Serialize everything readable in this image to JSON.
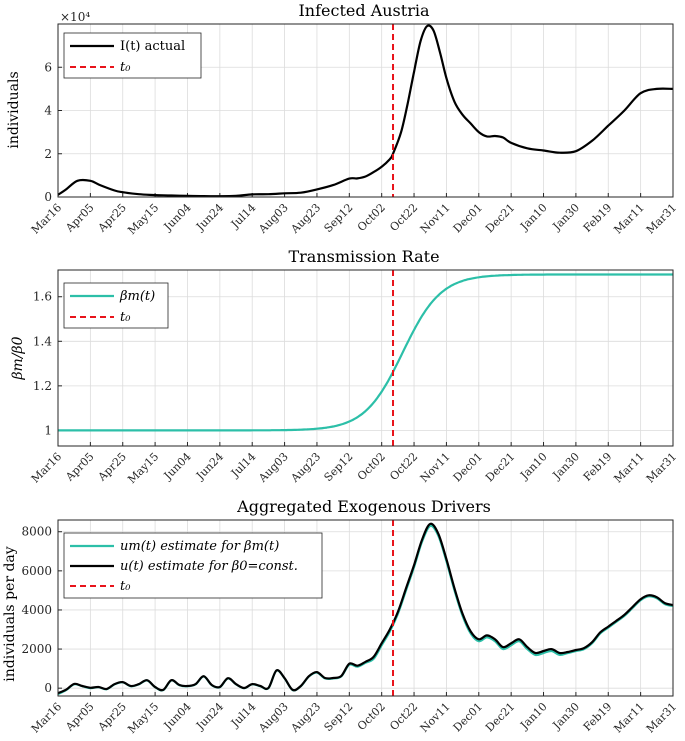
{
  "chart_data": [
    {
      "type": "line",
      "title": "Infected Austria",
      "ylabel": "individuals",
      "y_exponent_label": "×10⁴",
      "ylim": [
        0,
        80000
      ],
      "yticks": [
        0,
        20000,
        40000,
        60000
      ],
      "ytick_labels": [
        "0",
        "2",
        "4",
        "6"
      ],
      "grid": true,
      "legend_position": "top-left",
      "t0_day": 207,
      "t0_label": "t₀",
      "series": [
        {
          "name": "I(t) actual",
          "color": "#000000",
          "style": "solid",
          "x": [
            0,
            5,
            12,
            20,
            26,
            35,
            40,
            50,
            60,
            70,
            80,
            90,
            100,
            110,
            120,
            130,
            140,
            150,
            160,
            170,
            180,
            185,
            190,
            195,
            200,
            205,
            207,
            212,
            216,
            220,
            224,
            228,
            232,
            236,
            240,
            245,
            250,
            255,
            260,
            265,
            270,
            275,
            280,
            290,
            300,
            310,
            320,
            330,
            340,
            350,
            360,
            370,
            380
          ],
          "y": [
            1000,
            3500,
            7500,
            7500,
            5500,
            3000,
            2200,
            1300,
            900,
            700,
            500,
            400,
            350,
            500,
            1200,
            1300,
            1700,
            2000,
            3500,
            5500,
            8500,
            8600,
            9500,
            11500,
            14000,
            17500,
            20000,
            30000,
            43000,
            58000,
            72000,
            79000,
            77000,
            67000,
            55000,
            44000,
            38000,
            34000,
            30000,
            28000,
            28200,
            27500,
            25000,
            22500,
            21500,
            20500,
            21200,
            26000,
            33000,
            40000,
            48000,
            50000,
            50000
          ]
        }
      ]
    },
    {
      "type": "line",
      "title": "Transmission Rate",
      "ylabel": "βm/β0",
      "ylim": [
        0.93,
        1.72
      ],
      "yticks": [
        1,
        1.2,
        1.4,
        1.6
      ],
      "ytick_labels": [
        "1",
        "1.2",
        "1.4",
        "1.6"
      ],
      "grid": true,
      "legend_position": "top-left",
      "t0_day": 207,
      "t0_label": "t₀",
      "series": [
        {
          "name": "βm(t)",
          "color": "#2cbfa8",
          "style": "solid",
          "logistic": {
            "base": 1.0,
            "amplitude": 0.7,
            "midpoint": 213,
            "rate": 0.085
          },
          "x_range": [
            0,
            380
          ]
        }
      ]
    },
    {
      "type": "line",
      "title": "Aggregated Exogenous Drivers",
      "ylabel": "individuals per day",
      "ylim": [
        -400,
        8600
      ],
      "yticks": [
        0,
        2000,
        4000,
        6000,
        8000
      ],
      "ytick_labels": [
        "0",
        "2000",
        "4000",
        "6000",
        "8000"
      ],
      "grid": true,
      "legend_position": "top-left",
      "t0_day": 207,
      "t0_label": "t₀",
      "series": [
        {
          "name": "um(t) estimate for βm(t)",
          "color": "#2cbfa8",
          "style": "solid",
          "x": [
            0,
            5,
            10,
            15,
            20,
            25,
            30,
            35,
            40,
            45,
            50,
            55,
            60,
            65,
            70,
            75,
            80,
            85,
            90,
            95,
            100,
            105,
            110,
            115,
            120,
            125,
            130,
            135,
            140,
            145,
            150,
            155,
            160,
            165,
            170,
            175,
            180,
            185,
            190,
            195,
            200,
            205,
            210,
            215,
            220,
            225,
            230,
            235,
            240,
            245,
            250,
            255,
            260,
            265,
            270,
            275,
            280,
            285,
            290,
            295,
            300,
            305,
            310,
            315,
            320,
            325,
            330,
            335,
            340,
            345,
            350,
            355,
            360,
            365,
            370,
            375,
            380
          ],
          "y": [
            -300,
            -100,
            200,
            100,
            0,
            50,
            -50,
            200,
            300,
            100,
            200,
            400,
            50,
            -100,
            400,
            150,
            100,
            200,
            600,
            150,
            50,
            500,
            200,
            0,
            200,
            100,
            0,
            900,
            500,
            -100,
            100,
            600,
            800,
            500,
            500,
            600,
            1200,
            1100,
            1300,
            1500,
            2200,
            2900,
            3800,
            5000,
            6200,
            7500,
            8300,
            7800,
            6500,
            5000,
            3700,
            2800,
            2400,
            2600,
            2400,
            2000,
            2200,
            2400,
            2000,
            1700,
            1800,
            1900,
            1700,
            1800,
            1900,
            2000,
            2300,
            2800,
            3100,
            3400,
            3700,
            4100,
            4500,
            4700,
            4600,
            4300,
            4200
          ]
        },
        {
          "name": "u(t) estimate for β0=const.",
          "color": "#000000",
          "style": "solid",
          "x": [
            0,
            5,
            10,
            15,
            20,
            25,
            30,
            35,
            40,
            45,
            50,
            55,
            60,
            65,
            70,
            75,
            80,
            85,
            90,
            95,
            100,
            105,
            110,
            115,
            120,
            125,
            130,
            135,
            140,
            145,
            150,
            155,
            160,
            165,
            170,
            175,
            180,
            185,
            190,
            195,
            200,
            205,
            210,
            215,
            220,
            225,
            230,
            235,
            240,
            245,
            250,
            255,
            260,
            265,
            270,
            275,
            280,
            285,
            290,
            295,
            300,
            305,
            310,
            315,
            320,
            325,
            330,
            335,
            340,
            345,
            350,
            355,
            360,
            365,
            370,
            375,
            380
          ],
          "y": [
            -250,
            -80,
            220,
            110,
            20,
            60,
            -40,
            210,
            310,
            110,
            210,
            410,
            60,
            -90,
            410,
            160,
            110,
            210,
            610,
            160,
            60,
            510,
            210,
            10,
            210,
            110,
            10,
            910,
            510,
            -90,
            110,
            610,
            820,
            520,
            520,
            620,
            1250,
            1150,
            1350,
            1600,
            2300,
            3000,
            3900,
            5100,
            6300,
            7600,
            8400,
            7900,
            6600,
            5100,
            3800,
            2900,
            2500,
            2700,
            2500,
            2100,
            2300,
            2500,
            2100,
            1800,
            1900,
            2000,
            1800,
            1850,
            1950,
            2050,
            2350,
            2850,
            3150,
            3450,
            3750,
            4150,
            4550,
            4750,
            4650,
            4350,
            4250
          ]
        }
      ]
    }
  ],
  "x_axis": {
    "range_days": [
      0,
      380
    ],
    "tick_days": [
      0,
      20,
      40,
      60,
      80,
      100,
      120,
      140,
      160,
      180,
      200,
      220,
      240,
      260,
      280,
      300,
      320,
      340,
      360,
      380
    ],
    "tick_labels": [
      "Mar16",
      "Apr05",
      "Apr25",
      "May15",
      "Jun04",
      "Jun24",
      "Jul14",
      "Aug03",
      "Aug23",
      "Sep12",
      "Oct02",
      "Oct22",
      "Nov11",
      "Dec01",
      "Dec21",
      "Jan10",
      "Jan30",
      "Feb19",
      "Mar11",
      "Mar31"
    ]
  },
  "colors": {
    "t0_line": "#e8131b",
    "actual": "#000000",
    "model": "#2cbfa8",
    "axis": "#262626"
  }
}
